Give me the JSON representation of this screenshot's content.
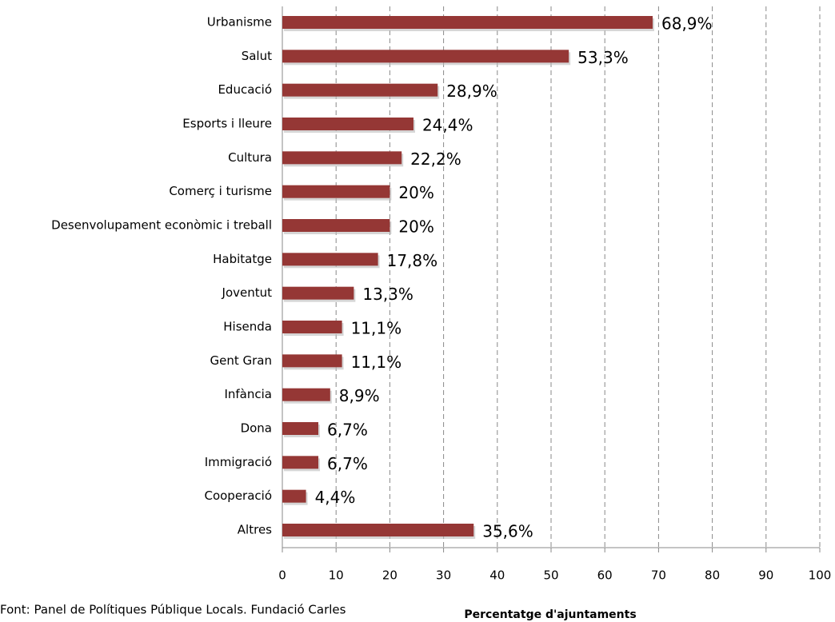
{
  "chart_data": {
    "type": "bar",
    "orientation": "horizontal",
    "categories": [
      "Urbanisme",
      "Salut",
      "Educació",
      "Esports i lleure",
      "Cultura",
      "Comerç i turisme",
      "Desenvolupament econòmic i treball",
      "Habitatge",
      "Joventut",
      "Hisenda",
      "Gent Gran",
      "Infància",
      "Dona",
      "Immigració",
      "Cooperació",
      "Altres"
    ],
    "values": [
      68.9,
      53.3,
      28.9,
      24.4,
      22.2,
      20,
      20,
      17.8,
      13.3,
      11.1,
      11.1,
      8.9,
      6.7,
      6.7,
      4.4,
      35.6
    ],
    "value_labels": [
      "68,9%",
      "53,3%",
      "28,9%",
      "24,4%",
      "22,2%",
      "20%",
      "20%",
      "17,8%",
      "13,3%",
      "11,1%",
      "11,1%",
      "8,9%",
      "6,7%",
      "6,7%",
      "4,4%",
      "35,6%"
    ],
    "color": "#953735",
    "xlim": [
      0,
      100
    ],
    "xticks": [
      0,
      10,
      20,
      30,
      40,
      50,
      60,
      70,
      80,
      90,
      100
    ],
    "grid": true,
    "xlabel": "Percentatge d'ajuntaments",
    "source": "Font: Panel de Polítiques Públique Locals. Fundació Carles"
  }
}
